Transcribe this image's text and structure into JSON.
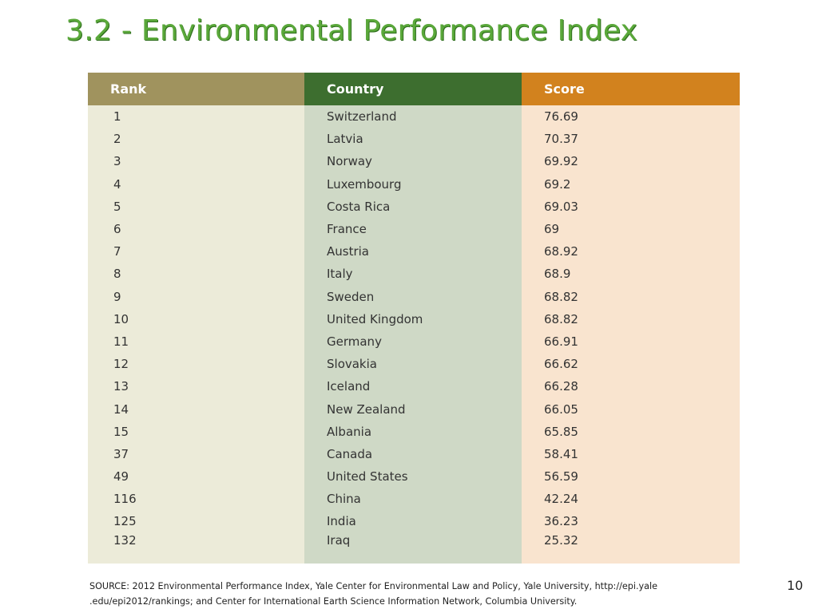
{
  "slide": {
    "title": "3.2 - Environmental  Performance Index",
    "page_number": "10"
  },
  "table": {
    "headers": {
      "rank": "Rank",
      "country": "Country",
      "score": "Score"
    },
    "rows": [
      {
        "rank": "1",
        "country": "Switzerland",
        "score": "76.69"
      },
      {
        "rank": "2",
        "country": "Latvia",
        "score": "70.37"
      },
      {
        "rank": "3",
        "country": "Norway",
        "score": "69.92"
      },
      {
        "rank": "4",
        "country": "Luxembourg",
        "score": "69.2"
      },
      {
        "rank": "5",
        "country": "Costa Rica",
        "score": "69.03"
      },
      {
        "rank": "6",
        "country": "France",
        "score": "69"
      },
      {
        "rank": "7",
        "country": "Austria",
        "score": "68.92"
      },
      {
        "rank": "8",
        "country": "Italy",
        "score": "68.9"
      },
      {
        "rank": "9",
        "country": "Sweden",
        "score": "68.82"
      },
      {
        "rank": "10",
        "country": "United Kingdom",
        "score": "68.82"
      },
      {
        "rank": "11",
        "country": "Germany",
        "score": "66.91"
      },
      {
        "rank": "12",
        "country": "Slovakia",
        "score": "66.62"
      },
      {
        "rank": "13",
        "country": "Iceland",
        "score": "66.28"
      },
      {
        "rank": "14",
        "country": "New Zealand",
        "score": "66.05"
      },
      {
        "rank": "15",
        "country": "Albania",
        "score": "65.85"
      },
      {
        "rank": "37",
        "country": "Canada",
        "score": "58.41"
      },
      {
        "rank": "49",
        "country": "United States",
        "score": "56.59"
      },
      {
        "rank": "116",
        "country": "China",
        "score": "42.24"
      },
      {
        "rank": "125",
        "country": "India",
        "score": "36.23"
      },
      {
        "rank": "132",
        "country": "Iraq",
        "score": "25.32"
      }
    ]
  },
  "source": {
    "line1": "SOURCE: 2012 Environmental Performance Index, Yale Center for Environmental Law and Policy, Yale University, http://epi.yale",
    "line2": ".edu/epi2012/rankings; and Center for International Earth Science Information Network, Columbia University."
  },
  "colors": {
    "title": "#5aa83a",
    "rank_header": "#a0935e",
    "country_header": "#3d6e2f",
    "score_header": "#d2821e",
    "rank_cell": "#ecebd9",
    "country_cell": "#cfd9c6",
    "score_cell": "#f9e4cf"
  }
}
